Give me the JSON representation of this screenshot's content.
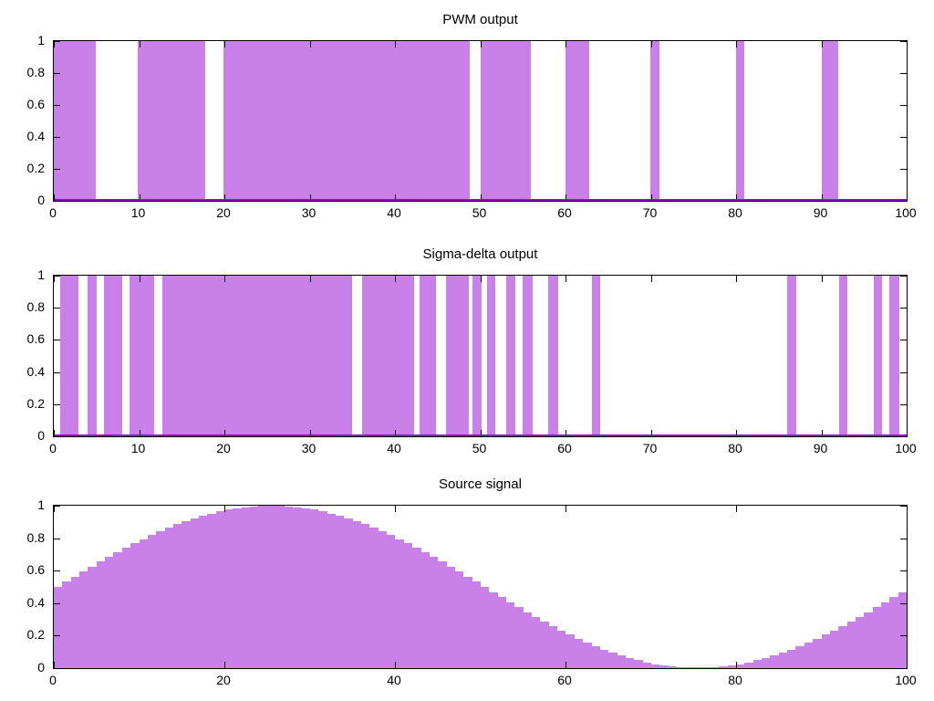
{
  "figure": {
    "background": "#ffffff",
    "fill_hex": "#ca80e9",
    "line_hex": "#9400d3",
    "axis_hex": "#000000"
  },
  "chart_data": [
    {
      "type": "bar",
      "subtype": "pulse-train",
      "title": "PWM output",
      "xlabel": "",
      "ylabel": "",
      "xlim": [
        0,
        100
      ],
      "ylim": [
        0,
        1
      ],
      "grid": false,
      "legend": "none",
      "x_ticks": [
        0,
        10,
        20,
        30,
        40,
        50,
        60,
        70,
        80,
        90,
        100
      ],
      "y_ticks": [
        0,
        0.2,
        0.4,
        0.6,
        0.8,
        1
      ],
      "y_tick_labels": [
        "0",
        "0.2",
        "0.4",
        "0.6",
        "0.8",
        "1"
      ],
      "pulse_level": 1,
      "baseline_level": 0,
      "pulses": [
        [
          0,
          4.9
        ],
        [
          9.8,
          17.8
        ],
        [
          19.9,
          48.8
        ],
        [
          50,
          55.9
        ],
        [
          60,
          62.8
        ],
        [
          69.9,
          71
        ],
        [
          80,
          81
        ],
        [
          90,
          92
        ]
      ]
    },
    {
      "type": "bar",
      "subtype": "pulse-train",
      "title": "Sigma-delta output",
      "xlabel": "",
      "ylabel": "",
      "xlim": [
        0,
        100
      ],
      "ylim": [
        0,
        1
      ],
      "grid": false,
      "legend": "none",
      "x_ticks": [
        0,
        10,
        20,
        30,
        40,
        50,
        60,
        70,
        80,
        90,
        100
      ],
      "y_ticks": [
        0,
        0.2,
        0.4,
        0.6,
        0.8,
        1
      ],
      "y_tick_labels": [
        "0",
        "0.2",
        "0.4",
        "0.6",
        "0.8",
        "1"
      ],
      "pulse_level": 1,
      "baseline_level": 0,
      "pulses": [
        [
          0.8,
          2.9
        ],
        [
          4,
          5
        ],
        [
          5.9,
          8
        ],
        [
          8.9,
          11.8
        ],
        [
          12.7,
          35
        ],
        [
          36.1,
          42.2
        ],
        [
          42.9,
          44.8
        ],
        [
          46,
          48.7
        ],
        [
          49.1,
          50.2
        ],
        [
          50.8,
          51.8
        ],
        [
          53,
          54.1
        ],
        [
          55,
          56.1
        ],
        [
          58,
          59.1
        ],
        [
          63.1,
          64.1
        ],
        [
          86,
          87.1
        ],
        [
          92.1,
          93.1
        ],
        [
          96.1,
          97.1
        ],
        [
          98,
          99.1
        ]
      ]
    },
    {
      "type": "bar",
      "subtype": "staircase",
      "title": "Source signal",
      "xlabel": "",
      "ylabel": "",
      "xlim": [
        0,
        100
      ],
      "ylim": [
        0,
        1
      ],
      "grid": false,
      "legend": "none",
      "x_ticks": [
        0,
        20,
        40,
        60,
        80,
        100
      ],
      "y_ticks": [
        0,
        0.2,
        0.4,
        0.6,
        0.8,
        1
      ],
      "y_tick_labels": [
        "0",
        "0.2",
        "0.4",
        "0.6",
        "0.8",
        "1"
      ],
      "bar_width": 1,
      "values": [
        0.5,
        0.531,
        0.563,
        0.594,
        0.624,
        0.655,
        0.684,
        0.713,
        0.741,
        0.768,
        0.794,
        0.819,
        0.842,
        0.864,
        0.885,
        0.905,
        0.922,
        0.938,
        0.952,
        0.965,
        0.976,
        0.984,
        0.991,
        0.996,
        0.999,
        1.0,
        0.999,
        0.996,
        0.991,
        0.984,
        0.976,
        0.965,
        0.952,
        0.938,
        0.922,
        0.905,
        0.885,
        0.864,
        0.842,
        0.819,
        0.794,
        0.768,
        0.741,
        0.713,
        0.684,
        0.655,
        0.624,
        0.594,
        0.563,
        0.531,
        0.5,
        0.469,
        0.437,
        0.406,
        0.376,
        0.345,
        0.316,
        0.287,
        0.259,
        0.232,
        0.206,
        0.181,
        0.158,
        0.136,
        0.115,
        0.095,
        0.078,
        0.062,
        0.048,
        0.035,
        0.024,
        0.016,
        0.009,
        0.004,
        0.001,
        0.0,
        0.001,
        0.004,
        0.009,
        0.016,
        0.024,
        0.035,
        0.048,
        0.062,
        0.078,
        0.095,
        0.115,
        0.136,
        0.158,
        0.181,
        0.206,
        0.232,
        0.259,
        0.287,
        0.316,
        0.345,
        0.376,
        0.406,
        0.437,
        0.469
      ]
    }
  ]
}
